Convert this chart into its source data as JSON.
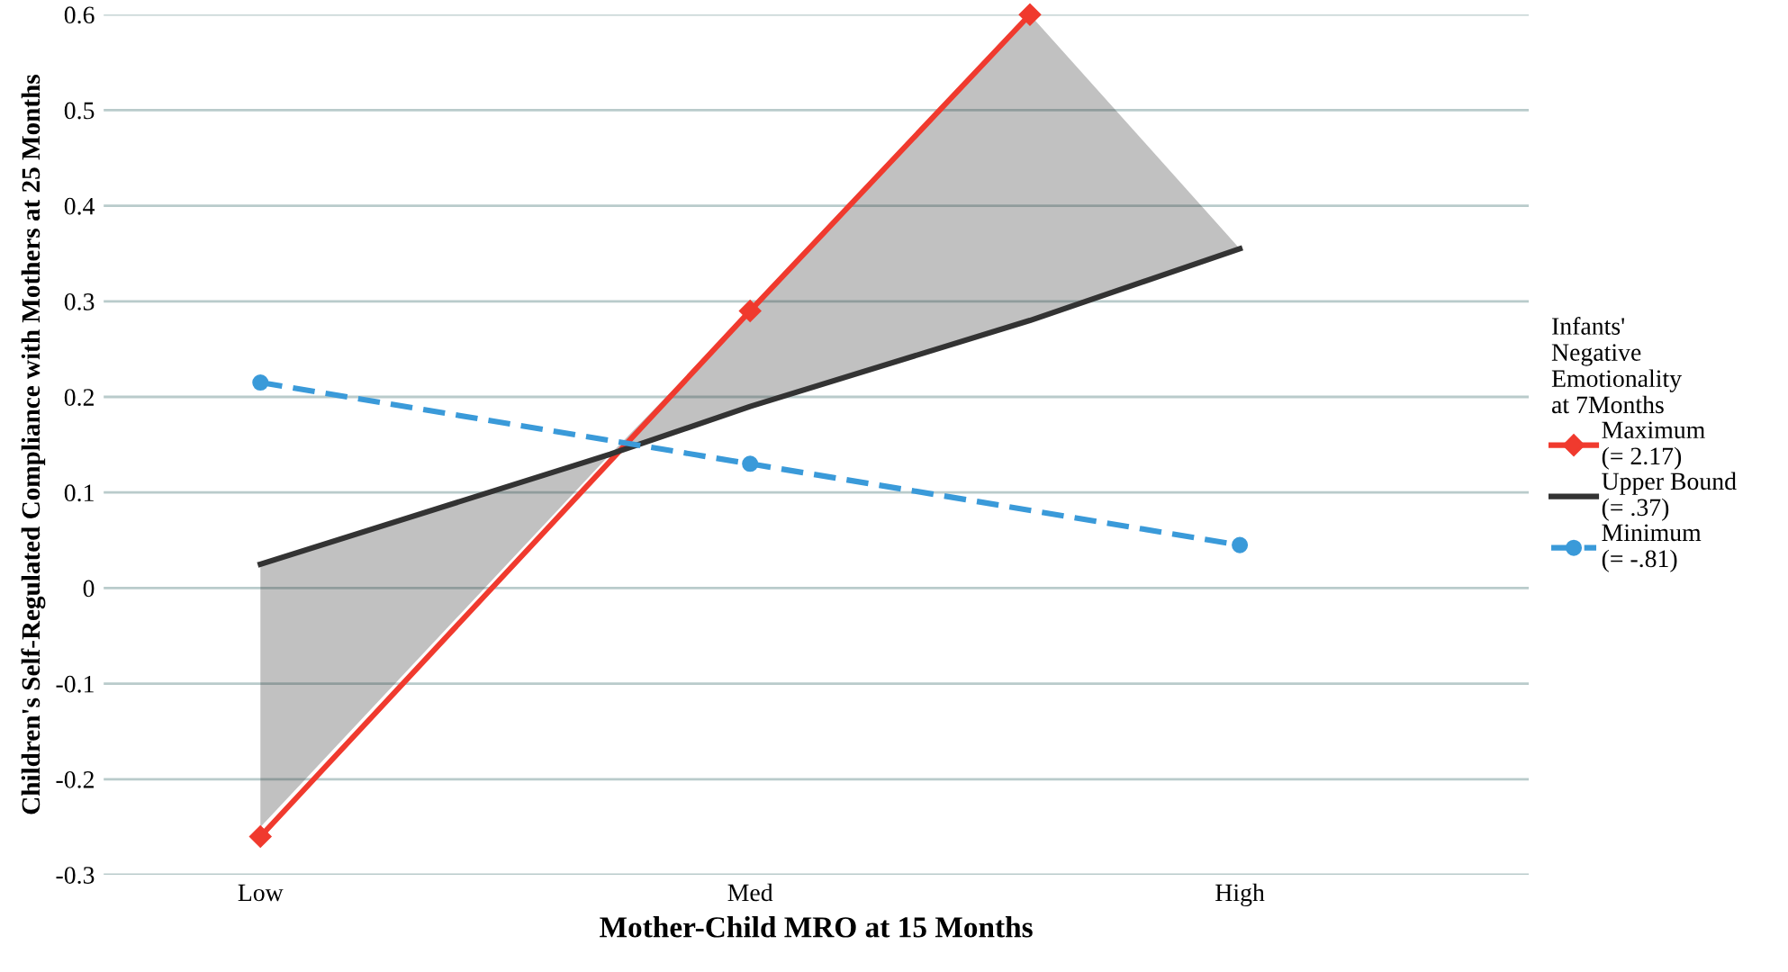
{
  "chart_data": {
    "type": "line",
    "xlabel": "Mother-Child MRO at 15 Months",
    "ylabel": "Children's Self-Regulated Compliance with Mothers at 25 Months",
    "legend_title": "Infants'\nNegative\nEmotionality\nat 7Months",
    "categories": [
      "Low",
      null,
      null,
      null,
      null,
      null,
      null,
      "Med",
      null,
      null,
      null,
      null,
      null,
      null,
      "High"
    ],
    "series": [
      {
        "name": "Maximum\n(= 2.17)",
        "color": "#f03a2e",
        "values": [
          -0.26,
          null,
          null,
          null,
          null,
          null,
          null,
          0.29,
          null,
          null,
          null,
          0.6,
          null,
          null,
          null
        ],
        "marker": "diamond",
        "line_style": "solid"
      },
      {
        "name": "Upper Bound\n(= .37)",
        "color": "#333333",
        "values": [
          0.025,
          null,
          null,
          null,
          null,
          0.14,
          null,
          0.19,
          null,
          null,
          null,
          0.28,
          null,
          null,
          0.355
        ],
        "lower": [
          -0.25,
          null,
          null,
          null,
          null,
          0.14,
          null,
          0.19,
          null,
          null,
          null,
          0.28,
          null,
          null,
          0.355
        ],
        "upper": [
          0.025,
          null,
          null,
          null,
          null,
          0.14,
          null,
          0.29,
          null,
          null,
          null,
          0.6,
          null,
          null,
          0.355
        ],
        "marker": "none",
        "line_style": "solid"
      },
      {
        "name": "Minimum\n(= -.81)",
        "color": "#3a9ad9",
        "values": [
          0.215,
          null,
          null,
          null,
          null,
          null,
          null,
          0.13,
          null,
          null,
          null,
          null,
          null,
          null,
          0.045
        ],
        "marker": "circle",
        "line_style": "dashed"
      }
    ],
    "ylim": [
      -0.3,
      0.6
    ],
    "yticks": [
      -0.3,
      -0.2,
      -0.1,
      0,
      0.1,
      0.2,
      0.3,
      0.4,
      0.5,
      0.6
    ],
    "grid": "y",
    "legend": "right"
  }
}
